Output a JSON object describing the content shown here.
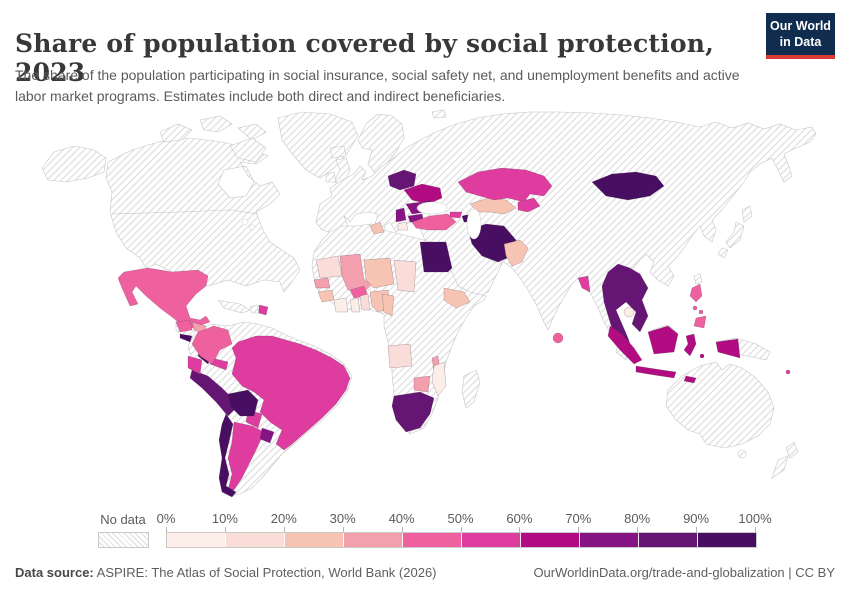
{
  "header": {
    "title": "Share of population covered by social protection, 2023",
    "subtitle": "The share of the population participating in social insurance, social safety net, and unemployment benefits and active labor market programs. Estimates include both direct and indirect beneficiaries."
  },
  "logo": {
    "line1": "Our World",
    "line2": "in Data"
  },
  "footer": {
    "source_label": "Data source:",
    "source_text": " ASPIRE: The Atlas of Social Protection, World Bank (2026)",
    "link_text": "OurWorldinData.org/trade-and-globalization | CC BY"
  },
  "chart_data": {
    "type": "choropleth",
    "title": "Share of population covered by social protection, 2023",
    "year": "2023",
    "legend": {
      "no_data_label": "No data",
      "tick_labels": [
        "0%",
        "10%",
        "20%",
        "30%",
        "40%",
        "50%",
        "60%",
        "70%",
        "80%",
        "90%",
        "100%"
      ],
      "colors": [
        "#fbeee9",
        "#fadcd8",
        "#f7c3b3",
        "#f49fad",
        "#ef609e",
        "#de3c9e",
        "#b20c83",
        "#871484",
        "#651573",
        "#470e62"
      ],
      "no_data_pattern": "diagonal-hatch"
    },
    "countries": [
      {
        "id": "mexico",
        "name": "Mexico",
        "bucket": 4,
        "range": "40-50%"
      },
      {
        "id": "guatemala",
        "name": "Guatemala",
        "bucket": 4,
        "range": "40-50%"
      },
      {
        "id": "honduras",
        "name": "Honduras",
        "bucket": 3,
        "range": "30-40%"
      },
      {
        "id": "el-salvador",
        "name": "El Salvador",
        "bucket": 9,
        "range": "90-100%"
      },
      {
        "id": "nicaragua",
        "name": "Nicaragua",
        "bucket": 4,
        "range": "40-50%"
      },
      {
        "id": "costa-rica",
        "name": "Costa Rica",
        "bucket": 9,
        "range": "90-100%"
      },
      {
        "id": "panama",
        "name": "Panama",
        "bucket": 5,
        "range": "50-60%"
      },
      {
        "id": "dominican-republic",
        "name": "Dominican Republic",
        "bucket": 5,
        "range": "50-60%"
      },
      {
        "id": "colombia",
        "name": "Colombia",
        "bucket": 4,
        "range": "40-50%"
      },
      {
        "id": "ecuador",
        "name": "Ecuador",
        "bucket": 5,
        "range": "50-60%"
      },
      {
        "id": "peru",
        "name": "Peru",
        "bucket": 8,
        "range": "80-90%"
      },
      {
        "id": "bolivia",
        "name": "Bolivia",
        "bucket": 9,
        "range": "90-100%"
      },
      {
        "id": "brazil",
        "name": "Brazil",
        "bucket": 5,
        "range": "50-60%"
      },
      {
        "id": "paraguay",
        "name": "Paraguay",
        "bucket": 5,
        "range": "50-60%"
      },
      {
        "id": "argentina",
        "name": "Argentina",
        "bucket": 5,
        "range": "50-60%"
      },
      {
        "id": "uruguay",
        "name": "Uruguay",
        "bucket": 7,
        "range": "70-80%"
      },
      {
        "id": "chile",
        "name": "Chile",
        "bucket": 9,
        "range": "90-100%"
      },
      {
        "id": "tunisia",
        "name": "Tunisia",
        "bucket": 2,
        "range": "20-30%"
      },
      {
        "id": "egypt",
        "name": "Egypt",
        "bucket": 9,
        "range": "90-100%"
      },
      {
        "id": "mauritania",
        "name": "Mauritania",
        "bucket": 1,
        "range": "10-20%"
      },
      {
        "id": "mali",
        "name": "Mali",
        "bucket": 3,
        "range": "30-40%"
      },
      {
        "id": "senegal",
        "name": "Senegal",
        "bucket": 3,
        "range": "30-40%"
      },
      {
        "id": "guinea",
        "name": "Guinea",
        "bucket": 2,
        "range": "20-30%"
      },
      {
        "id": "burkina-faso",
        "name": "Burkina Faso",
        "bucket": 4,
        "range": "40-50%"
      },
      {
        "id": "cote-divoire",
        "name": "Cote d'Ivoire",
        "bucket": 0,
        "range": "0-10%"
      },
      {
        "id": "ghana",
        "name": "Ghana",
        "bucket": 0,
        "range": "0-10%"
      },
      {
        "id": "togo-benin",
        "name": "Togo/Benin",
        "bucket": 1,
        "range": "10-20%"
      },
      {
        "id": "nigeria",
        "name": "Nigeria",
        "bucket": 2,
        "range": "20-30%"
      },
      {
        "id": "niger",
        "name": "Niger",
        "bucket": 2,
        "range": "20-30%"
      },
      {
        "id": "chad",
        "name": "Chad",
        "bucket": 1,
        "range": "10-20%"
      },
      {
        "id": "cameroon",
        "name": "Cameroon",
        "bucket": 2,
        "range": "20-30%"
      },
      {
        "id": "ethiopia",
        "name": "Ethiopia",
        "bucket": 2,
        "range": "20-30%"
      },
      {
        "id": "angola",
        "name": "Angola",
        "bucket": 1,
        "range": "10-20%"
      },
      {
        "id": "malawi",
        "name": "Malawi",
        "bucket": 3,
        "range": "30-40%"
      },
      {
        "id": "mozambique",
        "name": "Mozambique",
        "bucket": 0,
        "range": "0-10%"
      },
      {
        "id": "zimbabwe",
        "name": "Zimbabwe",
        "bucket": 3,
        "range": "30-40%"
      },
      {
        "id": "south-africa",
        "name": "South Africa",
        "bucket": 8,
        "range": "80-90%"
      },
      {
        "id": "poland-belarus",
        "name": "Poland/Belarus",
        "bucket": 8,
        "range": "80-90%"
      },
      {
        "id": "ukraine",
        "name": "Ukraine",
        "bucket": 6,
        "range": "60-70%"
      },
      {
        "id": "moldova",
        "name": "Moldova",
        "bucket": 8,
        "range": "80-90%"
      },
      {
        "id": "romania",
        "name": "Romania",
        "bucket": 7,
        "range": "70-80%"
      },
      {
        "id": "bulgaria",
        "name": "Bulgaria",
        "bucket": 7,
        "range": "70-80%"
      },
      {
        "id": "serbia-albania",
        "name": "Serbia/Albania",
        "bucket": 7,
        "range": "70-80%"
      },
      {
        "id": "greece",
        "name": "Greece",
        "bucket": 0,
        "range": "0-10%"
      },
      {
        "id": "turkey",
        "name": "Turkey",
        "bucket": 4,
        "range": "40-50%"
      },
      {
        "id": "georgia",
        "name": "Georgia",
        "bucket": 5,
        "range": "50-60%"
      },
      {
        "id": "azerbaijan",
        "name": "Azerbaijan",
        "bucket": 9,
        "range": "90-100%"
      },
      {
        "id": "iran",
        "name": "Iran",
        "bucket": 9,
        "range": "90-100%"
      },
      {
        "id": "pakistan",
        "name": "Pakistan",
        "bucket": 2,
        "range": "20-30%"
      },
      {
        "id": "uzbekistan",
        "name": "Uzbekistan",
        "bucket": 2,
        "range": "20-30%"
      },
      {
        "id": "kazakhstan",
        "name": "Kazakhstan",
        "bucket": 5,
        "range": "50-60%"
      },
      {
        "id": "kyrgyzstan-tajikistan",
        "name": "Kyrgyzstan/Tajikistan",
        "bucket": 5,
        "range": "50-60%"
      },
      {
        "id": "mongolia",
        "name": "Mongolia",
        "bucket": 9,
        "range": "90-100%"
      },
      {
        "id": "bangladesh",
        "name": "Bangladesh",
        "bucket": 5,
        "range": "50-60%"
      },
      {
        "id": "sri-lanka",
        "name": "Sri Lanka",
        "bucket": 4,
        "range": "40-50%"
      },
      {
        "id": "thailand-laos-vietnam",
        "name": "Thailand/Laos/Vietnam",
        "bucket": 8,
        "range": "80-90%"
      },
      {
        "id": "cambodia",
        "name": "Cambodia",
        "bucket": 0,
        "range": "0-10%"
      },
      {
        "id": "indonesia",
        "name": "Indonesia",
        "bucket": 6,
        "range": "60-70%"
      },
      {
        "id": "philippines",
        "name": "Philippines",
        "bucket": 4,
        "range": "40-50%"
      },
      {
        "id": "fiji",
        "name": "Fiji",
        "bucket": 5,
        "range": "50-60%"
      }
    ]
  }
}
